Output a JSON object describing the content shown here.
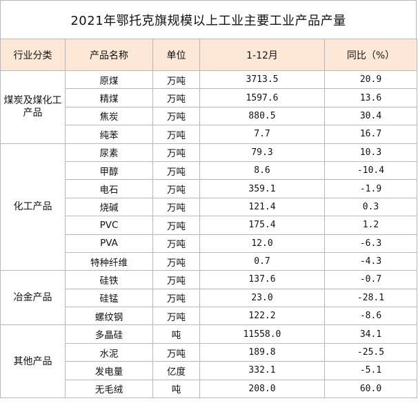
{
  "title": "2021年鄂托克旗规模以上工业主要工业产品产量",
  "headers": {
    "category": "行业分类",
    "product": "产品名称",
    "unit": "单位",
    "period": "1-12月",
    "yoy": "同比（%）"
  },
  "groups": [
    {
      "category": "煤炭及煤化工产品",
      "rows": [
        {
          "product": "原煤",
          "unit": "万吨",
          "value": "3713.5",
          "yoy": "20.9"
        },
        {
          "product": "精煤",
          "unit": "万吨",
          "value": "1597.6",
          "yoy": "13.6"
        },
        {
          "product": "焦炭",
          "unit": "万吨",
          "value": "880.5",
          "yoy": "30.4"
        },
        {
          "product": "纯苯",
          "unit": "万吨",
          "value": "7.7",
          "yoy": "16.7"
        }
      ]
    },
    {
      "category": "化工产品",
      "rows": [
        {
          "product": "尿素",
          "unit": "万吨",
          "value": "79.3",
          "yoy": "10.3"
        },
        {
          "product": "甲醇",
          "unit": "万吨",
          "value": "8.6",
          "yoy": "-10.4"
        },
        {
          "product": "电石",
          "unit": "万吨",
          "value": "359.1",
          "yoy": "-1.9"
        },
        {
          "product": "烧碱",
          "unit": "万吨",
          "value": "121.4",
          "yoy": "0.3"
        },
        {
          "product": "PVC",
          "unit": "万吨",
          "value": "175.4",
          "yoy": "1.2"
        },
        {
          "product": "PVA",
          "unit": "万吨",
          "value": "12.0",
          "yoy": "-6.3"
        },
        {
          "product": "特种纤维",
          "unit": "万吨",
          "value": "0.7",
          "yoy": "-4.3"
        }
      ]
    },
    {
      "category": "冶金产品",
      "rows": [
        {
          "product": "硅铁",
          "unit": "万吨",
          "value": "137.6",
          "yoy": "-0.7"
        },
        {
          "product": "硅锰",
          "unit": "万吨",
          "value": "23.0",
          "yoy": "-28.1"
        },
        {
          "product": "螺纹钢",
          "unit": "万吨",
          "value": "122.2",
          "yoy": "-8.6"
        }
      ]
    },
    {
      "category": "其他产品",
      "rows": [
        {
          "product": "多晶硅",
          "unit": "吨",
          "value": "11558.0",
          "yoy": "34.1"
        },
        {
          "product": "水泥",
          "unit": "万吨",
          "value": "189.8",
          "yoy": "-25.5"
        },
        {
          "product": "发电量",
          "unit": "亿度",
          "value": "332.1",
          "yoy": "-5.1"
        },
        {
          "product": "无毛绒",
          "unit": "吨",
          "value": "208.0",
          "yoy": "60.0"
        }
      ]
    }
  ]
}
